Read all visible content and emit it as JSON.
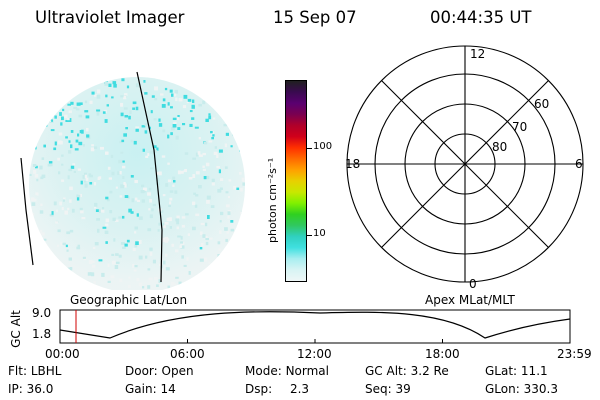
{
  "header": {
    "instrument": "Ultraviolet Imager",
    "date": "15 Sep 07",
    "time": "00:44:35 UT"
  },
  "colorbar": {
    "label": "photon cm⁻²s⁻¹",
    "ticks": [
      "100",
      "10"
    ],
    "colors": [
      "#202020",
      "#3a0a50",
      "#5a0070",
      "#7a0050",
      "#b0002a",
      "#d0001a",
      "#ff3000",
      "#ff6a00",
      "#ffa000",
      "#e8d000",
      "#c8e800",
      "#80f000",
      "#30d020",
      "#30c860",
      "#30d0c0",
      "#40e0e0",
      "#a8eef0",
      "#d8f4f4",
      "#eef6f6"
    ]
  },
  "polar": {
    "mlt_labels": {
      "top": "12",
      "left": "18",
      "right": "6",
      "bottom": "0"
    },
    "lat_labels": [
      "60",
      "70",
      "80"
    ]
  },
  "altitude_plot": {
    "left_title": "Geographic Lat/Lon",
    "right_title": "Apex MLat/MLT",
    "ylabel": "GC Alt",
    "yticks": [
      "9.0",
      "1.8"
    ],
    "xticks": [
      "00:00",
      "06:00",
      "12:00",
      "18:00",
      "23:59"
    ]
  },
  "status": {
    "row1": [
      {
        "label": "Flt:",
        "value": "LBHL"
      },
      {
        "label": "Door:",
        "value": "Open"
      },
      {
        "label": "Mode:",
        "value": "Normal"
      },
      {
        "label": "GC Alt:",
        "value": "3.2 Re"
      },
      {
        "label": "GLat:",
        "value": "11.1"
      }
    ],
    "row2": [
      {
        "label": "IP:",
        "value": "36.0"
      },
      {
        "label": "Gain:",
        "value": "14"
      },
      {
        "label": "Dsp:",
        "value": "2.3"
      },
      {
        "label": "Seq:",
        "value": "39"
      },
      {
        "label": "GLon:",
        "value": "330.3"
      }
    ]
  }
}
